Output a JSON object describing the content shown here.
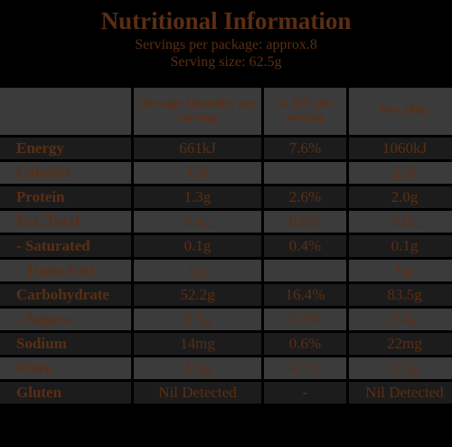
{
  "header": {
    "title": "Nutritional Information",
    "servings": "Servings per package: approx.8",
    "serving_size": "Serving size: 62.5g"
  },
  "table": {
    "columns": {
      "blank": "",
      "per_serving": "Average Quantity per serving",
      "di": "% DI* per serving",
      "per_100g": "Per 100g"
    },
    "rows": [
      {
        "label": "Energy",
        "per_serving": "661kJ",
        "di": "7.6%",
        "per_100g": "1060kJ"
      },
      {
        "label": "Calories",
        "per_serving": "158",
        "di": "-",
        "per_100g": "253"
      },
      {
        "label": "Protein",
        "per_serving": "1.3g",
        "di": "2.6%",
        "per_100g": "2.0g"
      },
      {
        "label": "Fat, Total",
        "per_serving": "0.4g",
        "di": "0.6%",
        "per_100g": "0.6g"
      },
      {
        "label": "- Saturated",
        "per_serving": "0.1g",
        "di": "0.4%",
        "per_100g": "0.1g"
      },
      {
        "label": "- Trans Fats",
        "per_serving": "0g",
        "di": "-",
        "per_100g": "0g"
      },
      {
        "label": "Carbohydrate",
        "per_serving": "52.2g",
        "di": "16.4%",
        "per_100g": "83.5g"
      },
      {
        "label": "- Sugars",
        "per_serving": "0.3g",
        "di": "0.3%",
        "per_100g": "0.4g"
      },
      {
        "label": "Sodium",
        "per_serving": "14mg",
        "di": "0.6%",
        "per_100g": "22mg"
      },
      {
        "label": "Fibre",
        "per_serving": "1.4g",
        "di": "4.7%",
        "per_100g": "2.3g"
      },
      {
        "label": "Gluten",
        "per_serving": "Nil Detected",
        "di": "-",
        "per_100g": "Nil Detected"
      }
    ]
  },
  "colors": {
    "text": "#5a2e14",
    "background": "#000000",
    "row_dark": "#1c1c1c",
    "row_light": "#3b3b3b"
  }
}
